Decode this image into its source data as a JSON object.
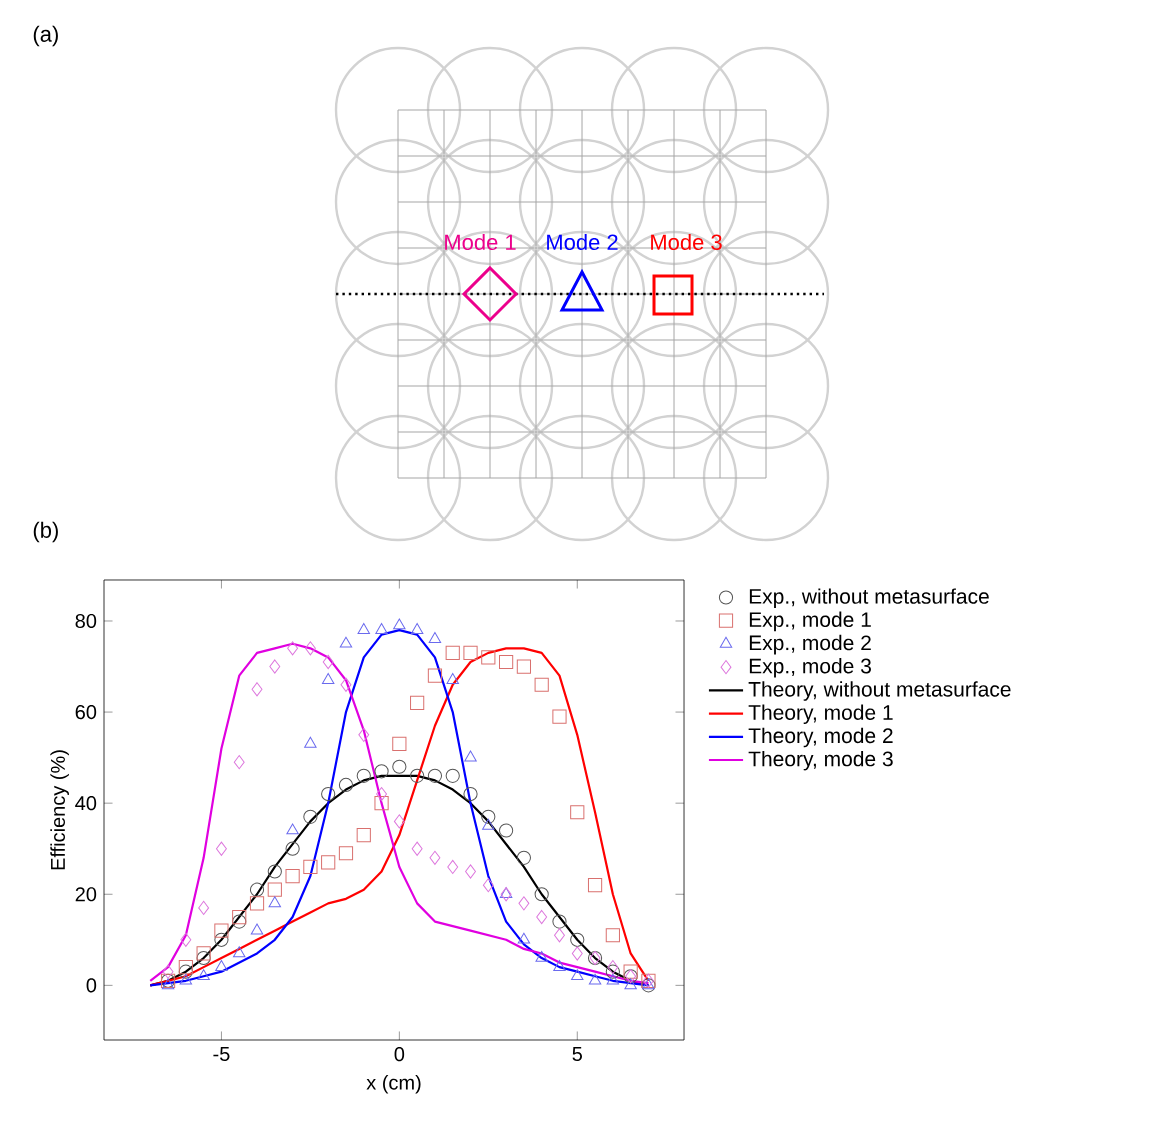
{
  "chart_data": {
    "type": "scatter",
    "xlabel": "x (cm)",
    "ylabel": "Efficiency (%)",
    "annotations": [
      "(a)",
      "Mode 1",
      "Mode 2",
      "Mode 3",
      "(b)"
    ],
    "xlim": [
      -8.3,
      8
    ],
    "ylim": [
      -12,
      89
    ],
    "xticks": [
      -5,
      0,
      5
    ],
    "yticks": [
      0,
      20,
      40,
      60,
      80
    ],
    "grid": false,
    "legend": "right",
    "series": [
      {
        "name": "Exp., without metasurface",
        "type": "scatter",
        "marker": "circle",
        "color": "#555555",
        "x": [
          -6.5,
          -6,
          -5.5,
          -5,
          -4.5,
          -4,
          -3.5,
          -3,
          -2.5,
          -2,
          -1.5,
          -1,
          -0.5,
          0,
          0.5,
          1,
          1.5,
          2,
          2.5,
          3,
          3.5,
          4,
          4.5,
          5,
          5.5,
          6,
          6.5,
          7
        ],
        "values": [
          1,
          3,
          6,
          10,
          14,
          21,
          25,
          30,
          37,
          42,
          44,
          46,
          47,
          48,
          46,
          46,
          46,
          42,
          37,
          34,
          28,
          20,
          14,
          10,
          6,
          3,
          2,
          0
        ]
      },
      {
        "name": "Exp., mode 1",
        "type": "scatter",
        "marker": "square",
        "color": "#d9706e",
        "x": [
          -6.5,
          -6,
          -5.5,
          -5,
          -4.5,
          -4,
          -3.5,
          -3,
          -2.5,
          -2,
          -1.5,
          -1,
          -0.5,
          0,
          0.5,
          1,
          1.5,
          2,
          2.5,
          3,
          3.5,
          4,
          4.5,
          5,
          5.5,
          6,
          6.5,
          7
        ],
        "values": [
          1,
          4,
          7,
          12,
          15,
          18,
          21,
          24,
          26,
          27,
          29,
          33,
          40,
          53,
          62,
          68,
          73,
          73,
          72,
          71,
          70,
          66,
          59,
          38,
          22,
          11,
          3,
          1
        ]
      },
      {
        "name": "Exp., mode 2",
        "type": "scatter",
        "marker": "triangle",
        "color": "#6a6aee",
        "x": [
          -6.5,
          -6,
          -5.5,
          -5,
          -4.5,
          -4,
          -3.5,
          -3,
          -2.5,
          -2,
          -1.5,
          -1,
          -0.5,
          0,
          0.5,
          1,
          1.5,
          2,
          2.5,
          3,
          3.5,
          4,
          4.5,
          5,
          5.5,
          6,
          6.5,
          7
        ],
        "values": [
          0,
          1,
          2,
          4,
          7,
          12,
          18,
          34,
          53,
          67,
          75,
          78,
          78,
          79,
          78,
          76,
          67,
          50,
          35,
          20,
          10,
          6,
          4,
          2,
          1,
          1,
          0,
          0
        ]
      },
      {
        "name": "Exp., mode 3",
        "type": "scatter",
        "marker": "diamond",
        "color": "#dd77dd",
        "x": [
          -6.5,
          -6,
          -5.5,
          -5,
          -4.5,
          -4,
          -3.5,
          -3,
          -2.5,
          -2,
          -1.5,
          -1,
          -0.5,
          0,
          0.5,
          1,
          1.5,
          2,
          2.5,
          3,
          3.5,
          4,
          4.5,
          5,
          5.5,
          6,
          6.5,
          7
        ],
        "values": [
          3,
          10,
          17,
          30,
          49,
          65,
          70,
          74,
          74,
          71,
          66,
          55,
          42,
          36,
          30,
          28,
          26,
          25,
          22,
          20,
          18,
          15,
          11,
          7,
          6,
          4,
          2,
          1
        ]
      },
      {
        "name": "Theory, without metasurface",
        "type": "line",
        "color": "#000000",
        "x": [
          -7,
          -6.5,
          -6,
          -5.5,
          -5,
          -4.5,
          -4,
          -3.5,
          -3,
          -2.5,
          -2,
          -1.5,
          -1,
          -0.5,
          0,
          0.5,
          1,
          1.5,
          2,
          2.5,
          3,
          3.5,
          4,
          4.5,
          5,
          5.5,
          6,
          6.5,
          7
        ],
        "values": [
          0,
          1,
          3,
          6,
          10,
          15,
          20,
          26,
          31,
          36,
          40,
          43,
          45,
          46,
          46,
          46,
          45,
          43,
          40,
          36,
          31,
          26,
          20,
          15,
          10,
          6,
          3,
          1,
          0
        ]
      },
      {
        "name": "Theory, mode 1",
        "type": "line",
        "color": "#ff0000",
        "x": [
          -7,
          -6.5,
          -6,
          -5.5,
          -5,
          -4.5,
          -4,
          -3.5,
          -3,
          -2.5,
          -2,
          -1.5,
          -1,
          -0.5,
          0,
          0.5,
          1,
          1.5,
          2,
          2.5,
          3,
          3.5,
          4,
          4.5,
          5,
          5.5,
          6,
          6.5,
          7
        ],
        "values": [
          0,
          1,
          2,
          4,
          6,
          8,
          10,
          12,
          14,
          16,
          18,
          19,
          21,
          25,
          33,
          45,
          57,
          66,
          71,
          73,
          74,
          74,
          73,
          68,
          55,
          38,
          20,
          7,
          1
        ]
      },
      {
        "name": "Theory, mode 2",
        "type": "line",
        "color": "#0000ff",
        "x": [
          -7,
          -6.5,
          -6,
          -5.5,
          -5,
          -4.5,
          -4,
          -3.5,
          -3,
          -2.5,
          -2,
          -1.5,
          -1,
          -0.5,
          0,
          0.5,
          1,
          1.5,
          2,
          2.5,
          3,
          3.5,
          4,
          4.5,
          5,
          5.5,
          6,
          6.5,
          7
        ],
        "values": [
          0,
          0.5,
          1,
          2,
          3,
          5,
          7,
          10,
          15,
          24,
          40,
          60,
          72,
          77,
          78,
          77,
          72,
          60,
          40,
          24,
          14,
          9,
          6,
          4,
          3,
          2,
          1,
          0.5,
          0
        ]
      },
      {
        "name": "Theory, mode 3",
        "type": "line",
        "color": "#e000e0",
        "x": [
          -7,
          -6.5,
          -6,
          -5.5,
          -5,
          -4.5,
          -4,
          -3.5,
          -3,
          -2.5,
          -2,
          -1.5,
          -1,
          -0.5,
          0,
          0.5,
          1,
          1.5,
          2,
          2.5,
          3,
          3.5,
          4,
          4.5,
          5,
          5.5,
          6,
          6.5,
          7
        ],
        "values": [
          1,
          4,
          11,
          28,
          52,
          68,
          73,
          74,
          75,
          74,
          72,
          67,
          56,
          40,
          26,
          18,
          14,
          13,
          12,
          11,
          10,
          8,
          7,
          5,
          4,
          3,
          2,
          1,
          0.5
        ]
      }
    ]
  }
}
